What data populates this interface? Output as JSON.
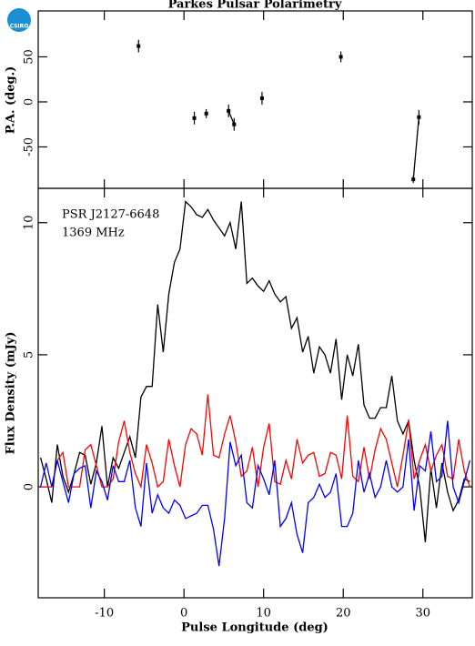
{
  "logo": "CSIRO",
  "chart_data": [
    {
      "type": "scatter",
      "title": "Parkes Pulsar Polarimetry",
      "ylabel": "P.A. (deg.)",
      "xlim": [
        -18.3,
        36.2
      ],
      "ylim": [
        -96,
        101
      ],
      "yticks": [
        50,
        0,
        -50
      ],
      "color": "#000000",
      "x": [
        -5.7,
        1.3,
        2.8,
        5.6,
        6.3,
        9.8,
        19.7,
        28.8,
        29.5
      ],
      "values": [
        62,
        -18,
        -13,
        -10,
        -25,
        4,
        50,
        -86,
        -17
      ],
      "errors": [
        7,
        7,
        5,
        7,
        7,
        7,
        6,
        4,
        8
      ]
    },
    {
      "type": "line",
      "xlabel": "Pulse Longitude (deg)",
      "ylabel": "Flux Density (mJy)",
      "annotations": [
        "PSR J2127-6648",
        "1369 MHz"
      ],
      "xlim": [
        -18.3,
        36.2
      ],
      "ylim": [
        -4.2,
        11.3
      ],
      "xticks": [
        -10,
        0,
        10,
        20,
        30
      ],
      "yticks": [
        0,
        5,
        10
      ],
      "x": [
        -18,
        -17.3,
        -16.6,
        -15.9,
        -15.2,
        -14.5,
        -13.8,
        -13.1,
        -12.4,
        -11.7,
        -11,
        -10.3,
        -9.6,
        -8.9,
        -8.2,
        -7.5,
        -6.8,
        -6.1,
        -5.4,
        -4.7,
        -4,
        -3.3,
        -2.6,
        -1.9,
        -1.2,
        -0.5,
        0.2,
        0.9,
        1.6,
        2.3,
        3,
        3.7,
        4.4,
        5.1,
        5.8,
        6.5,
        7.2,
        7.9,
        8.6,
        9.3,
        10,
        10.7,
        11.4,
        12.1,
        12.8,
        13.5,
        14.2,
        14.9,
        15.6,
        16.3,
        17,
        17.7,
        18.4,
        19.1,
        19.8,
        20.5,
        21.2,
        21.9,
        22.6,
        23.3,
        24,
        24.7,
        25.4,
        26.1,
        26.8,
        27.5,
        28.2,
        28.9,
        29.6,
        30.3,
        31,
        31.7,
        32.4,
        33.1,
        33.8,
        34.5,
        35.2,
        35.9
      ],
      "series": [
        {
          "color": "#000000",
          "values": [
            1.1,
            0.3,
            -0.6,
            1.6,
            0.4,
            -0.2,
            0.5,
            1.3,
            1.2,
            0.1,
            0.9,
            2.3,
            0.0,
            1.1,
            0.7,
            1.3,
            1.9,
            1.1,
            3.4,
            3.8,
            3.8,
            6.9,
            5.1,
            7.3,
            8.5,
            9.0,
            10.8,
            10.6,
            10.3,
            10.2,
            10.5,
            10.1,
            9.8,
            9.5,
            10.0,
            9.0,
            10.8,
            7.7,
            7.9,
            7.6,
            7.4,
            7.8,
            7.3,
            7.0,
            7.2,
            6.0,
            6.4,
            5.1,
            5.7,
            4.3,
            5.3,
            5.0,
            4.3,
            5.6,
            3.3,
            5.0,
            4.2,
            5.4,
            3.1,
            2.6,
            2.6,
            3.0,
            3.0,
            4.2,
            2.5,
            2.0,
            2.5,
            1.0,
            0.0,
            -2.1,
            0.7,
            -0.8,
            0.9,
            -0.2,
            -0.9,
            -0.5,
            0.3,
            0.2
          ]
        },
        {
          "color": "#ff0000",
          "values": [
            0,
            0,
            0,
            1.0,
            1.3,
            0,
            0,
            0,
            1.4,
            1.6,
            0.8,
            0,
            0,
            0.3,
            1.7,
            2.5,
            1.3,
            0.5,
            0,
            1.6,
            0.9,
            0,
            0.2,
            1.8,
            0.8,
            0,
            1.6,
            2.2,
            2.0,
            1.2,
            3.5,
            1.2,
            1.1,
            2.0,
            2.7,
            1.7,
            0.4,
            0.6,
            1.5,
            0,
            1.5,
            2.4,
            0.2,
            0.1,
            1.0,
            0.3,
            1.8,
            0.9,
            1.2,
            1.3,
            0.4,
            0.5,
            1.3,
            1.2,
            0.3,
            2.7,
            0.4,
            0.2,
            1.5,
            0.3,
            1.4,
            2.2,
            1.8,
            0.9,
            0,
            1.2,
            2.5,
            0.3,
            1.0,
            1.6,
            0.6,
            1.2,
            1.6,
            0.4,
            0.3,
            1.8,
            0.6,
            0
          ]
        },
        {
          "color": "#0000ff",
          "values": [
            0,
            0.9,
            0,
            1.0,
            0.2,
            -0.6,
            0.5,
            0.7,
            0.8,
            -0.8,
            0.6,
            0.2,
            -0.5,
            0.8,
            0.2,
            0.2,
            1.0,
            -0.8,
            -1.5,
            0.9,
            -1.0,
            -0.3,
            -0.8,
            -1.0,
            -0.5,
            -0.7,
            -1.2,
            -1.1,
            -1.0,
            -0.7,
            -0.7,
            -1.6,
            -3.0,
            -1.2,
            1.7,
            0.8,
            1.2,
            -0.6,
            -0.8,
            0.8,
            0.3,
            -0.3,
            1.0,
            -1.5,
            -1.2,
            -0.6,
            -1.8,
            -2.5,
            -0.6,
            -0.4,
            0.1,
            -0.4,
            -0.2,
            0.5,
            -1.5,
            -1.5,
            -1.0,
            1.0,
            -0.2,
            0.5,
            -0.4,
            0,
            1.0,
            0,
            -0.2,
            0,
            1.8,
            -0.9,
            0.8,
            0.6,
            2.1,
            0.2,
            0.4,
            2.5,
            0,
            -0.6,
            0.2,
            1.0
          ]
        }
      ]
    }
  ]
}
